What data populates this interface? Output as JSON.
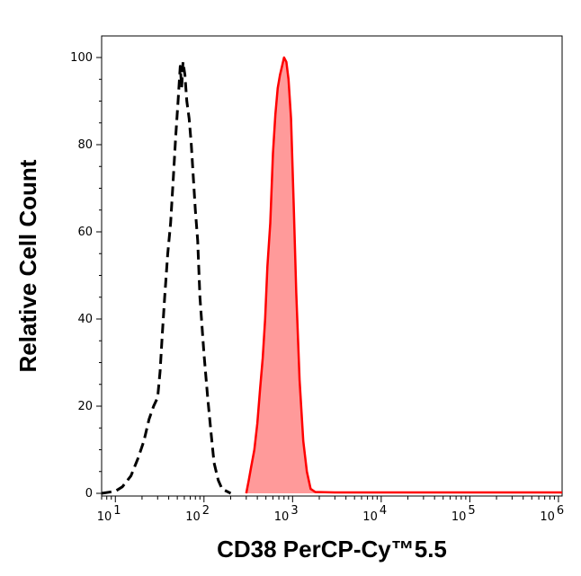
{
  "chart_data": {
    "type": "area",
    "xlabel": "CD38 PerCP-Cy™5.5",
    "ylabel": "Relative Cell Count",
    "x_scale": "log",
    "xlim": [
      7,
      1100000
    ],
    "ylim": [
      0,
      100
    ],
    "x_ticks": [
      {
        "value": 10,
        "base": "10",
        "exp": "1"
      },
      {
        "value": 100,
        "base": "10",
        "exp": "2"
      },
      {
        "value": 1000,
        "base": "10",
        "exp": "3"
      },
      {
        "value": 10000,
        "base": "10",
        "exp": "4"
      },
      {
        "value": 100000,
        "base": "10",
        "exp": "5"
      },
      {
        "value": 1000000,
        "base": "10",
        "exp": "6"
      }
    ],
    "y_ticks": [
      "0",
      "20",
      "40",
      "60",
      "80",
      "100"
    ],
    "grid": false,
    "series": [
      {
        "style": "dashed-line",
        "color": "#000000",
        "points": [
          [
            7,
            0
          ],
          [
            10,
            0.5
          ],
          [
            12,
            1.5
          ],
          [
            15,
            4
          ],
          [
            18,
            8
          ],
          [
            21,
            12
          ],
          [
            24,
            17
          ],
          [
            27,
            20
          ],
          [
            30,
            22
          ],
          [
            32,
            28
          ],
          [
            34,
            37
          ],
          [
            36,
            45
          ],
          [
            39,
            55
          ],
          [
            42,
            62
          ],
          [
            45,
            72
          ],
          [
            48,
            82
          ],
          [
            51,
            90
          ],
          [
            54,
            98
          ],
          [
            56,
            93
          ],
          [
            58,
            99
          ],
          [
            61,
            96
          ],
          [
            64,
            90
          ],
          [
            68,
            86
          ],
          [
            72,
            80
          ],
          [
            76,
            72
          ],
          [
            80,
            65
          ],
          [
            85,
            58
          ],
          [
            90,
            45
          ],
          [
            100,
            32
          ],
          [
            110,
            22
          ],
          [
            120,
            14
          ],
          [
            130,
            7
          ],
          [
            145,
            3
          ],
          [
            160,
            1
          ],
          [
            200,
            0
          ]
        ]
      },
      {
        "style": "filled",
        "color": "#ff0000",
        "fill": "#ff9a9a",
        "points": [
          [
            300,
            0
          ],
          [
            320,
            3
          ],
          [
            340,
            6
          ],
          [
            370,
            10
          ],
          [
            400,
            16
          ],
          [
            430,
            24
          ],
          [
            460,
            31
          ],
          [
            490,
            40
          ],
          [
            520,
            52
          ],
          [
            560,
            62
          ],
          [
            600,
            78
          ],
          [
            640,
            87
          ],
          [
            680,
            93
          ],
          [
            720,
            96
          ],
          [
            760,
            98
          ],
          [
            800,
            100
          ],
          [
            850,
            99
          ],
          [
            900,
            95
          ],
          [
            960,
            86
          ],
          [
            1030,
            66
          ],
          [
            1100,
            46
          ],
          [
            1200,
            26
          ],
          [
            1320,
            12
          ],
          [
            1450,
            5
          ],
          [
            1600,
            1
          ],
          [
            1800,
            0.3
          ],
          [
            3000,
            0.2
          ],
          [
            30000,
            0.2
          ],
          [
            100000,
            0.2
          ],
          [
            1100000,
            0.2
          ]
        ]
      }
    ]
  }
}
